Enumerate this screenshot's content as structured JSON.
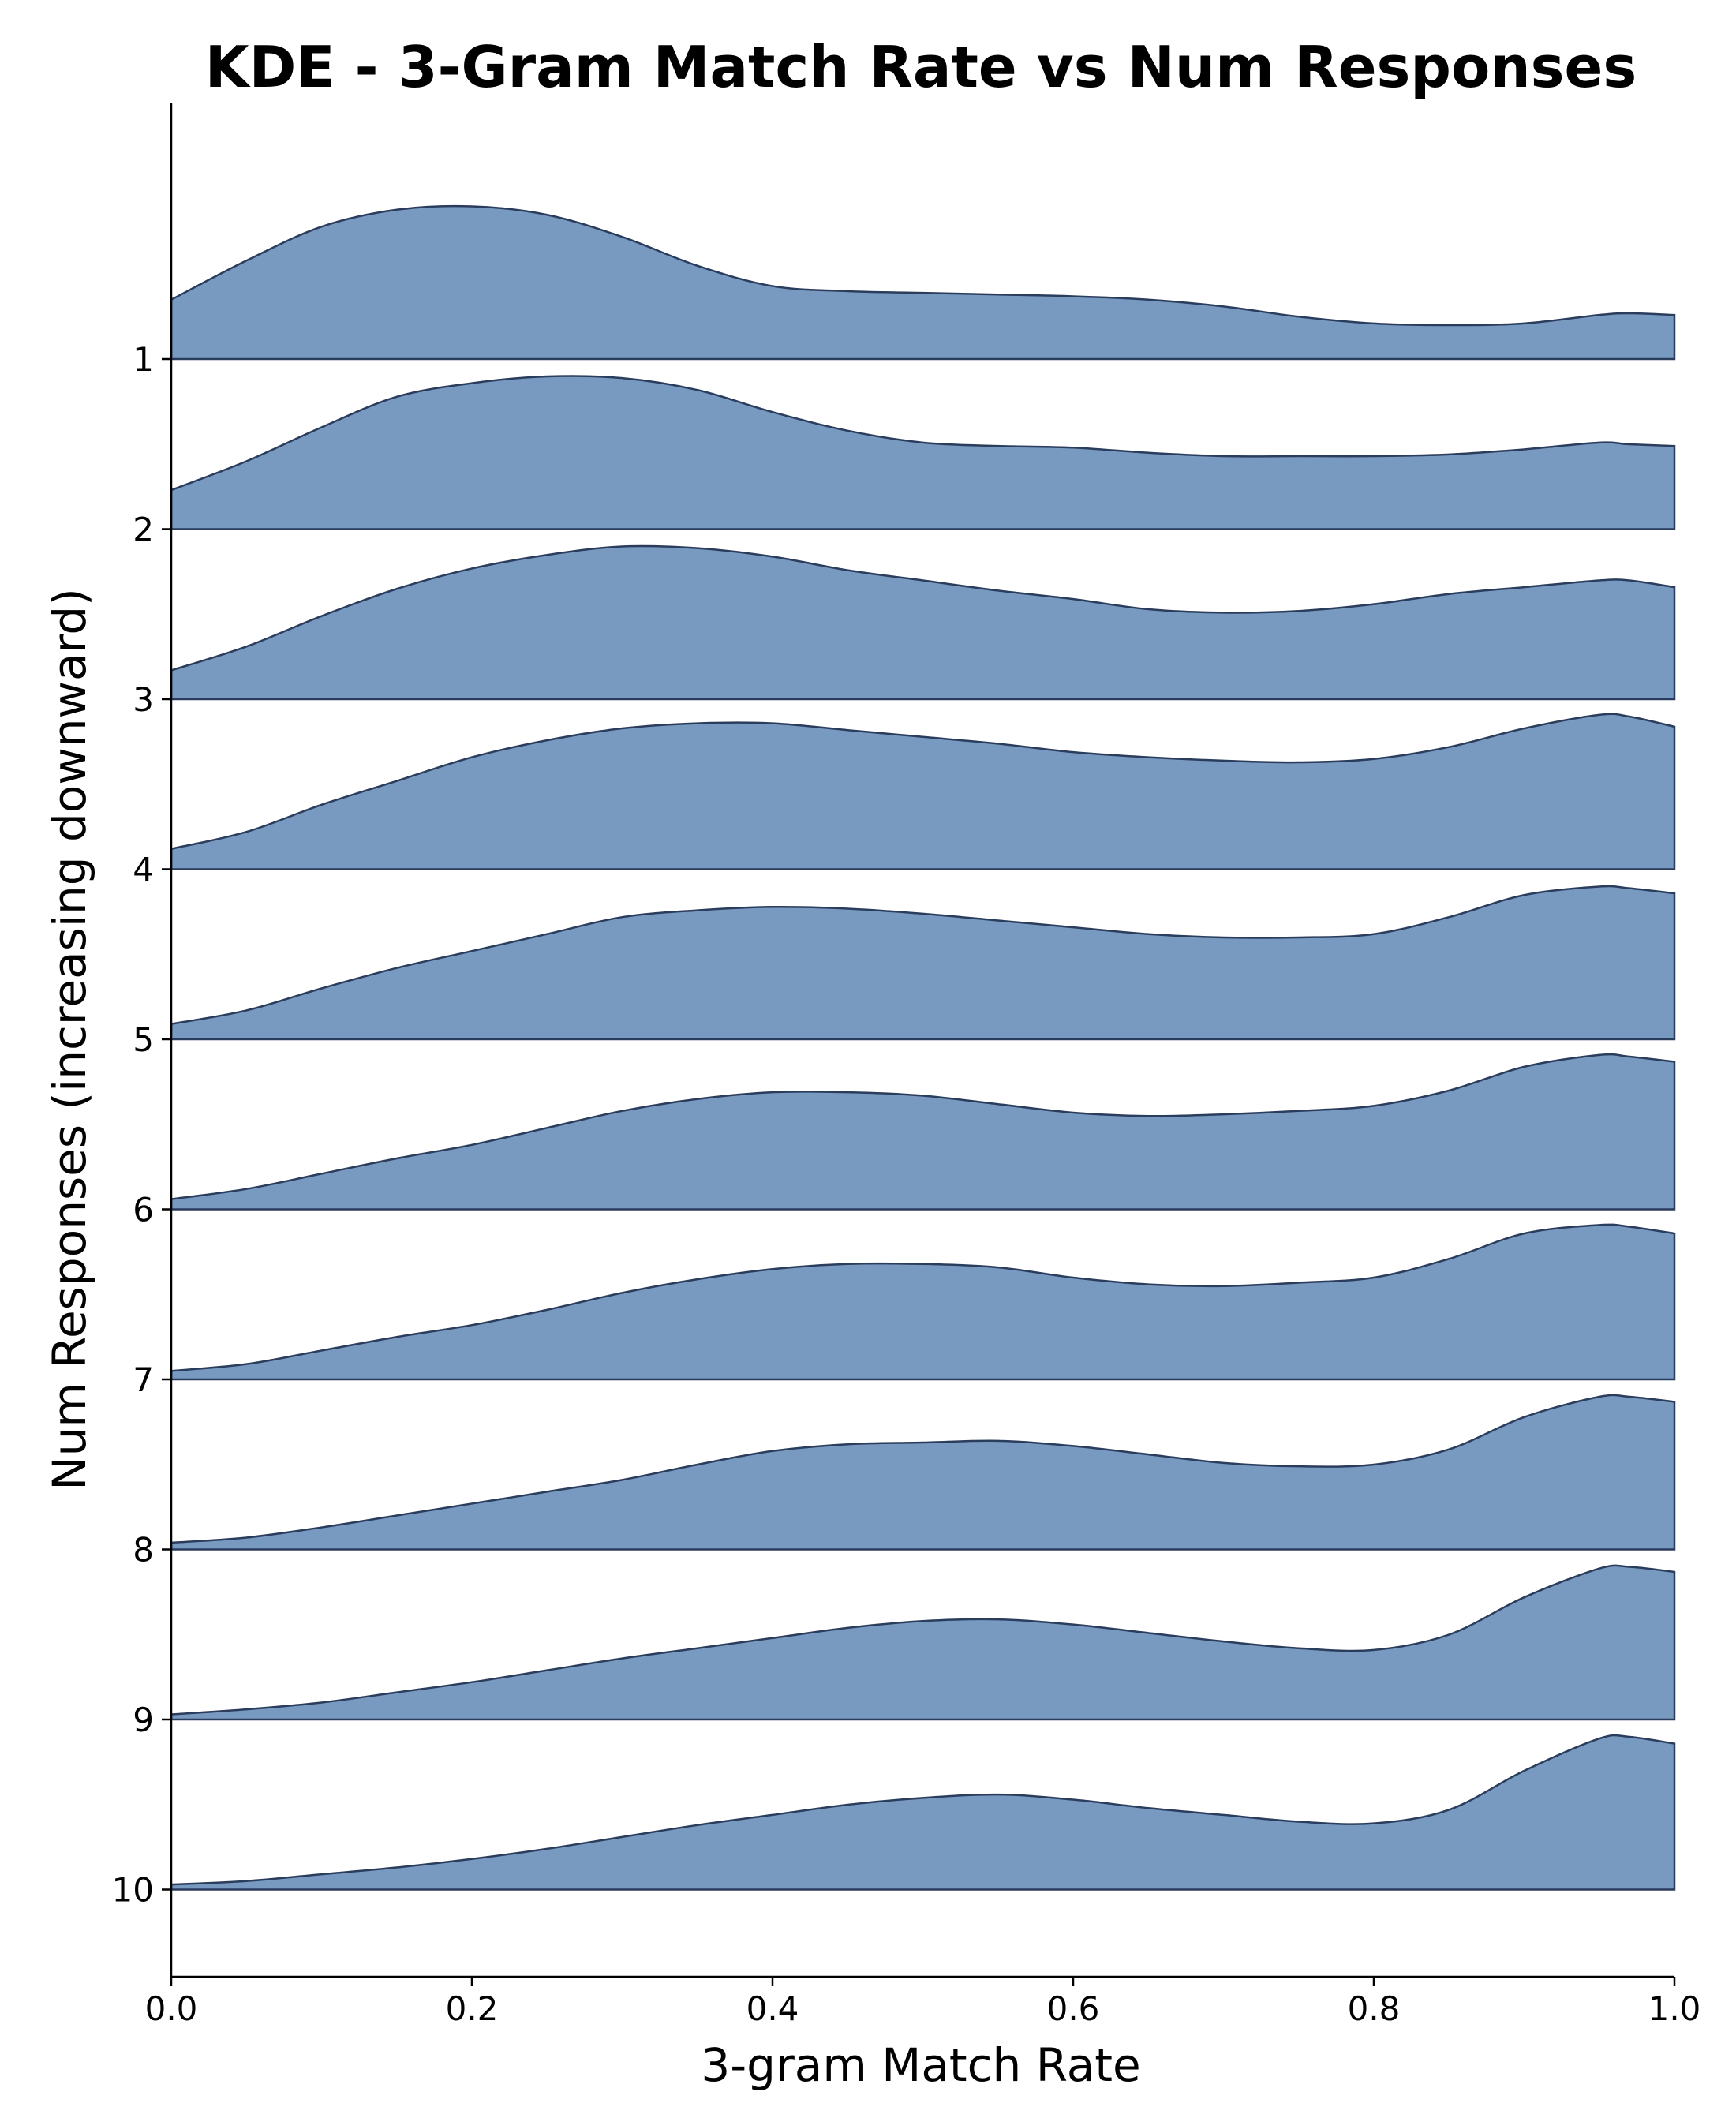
{
  "chart_data": {
    "type": "ridgeline",
    "title": "KDE - 3-Gram Match Rate vs Num Responses",
    "xlabel": "3-gram Match Rate",
    "ylabel": "Num Responses (increasing downward)",
    "xlim": [
      0.0,
      1.0
    ],
    "x_ticks": [
      "0.0",
      "0.2",
      "0.4",
      "0.6",
      "0.8",
      "1.0"
    ],
    "grid": false,
    "fill_color": "#7899c0",
    "line_color": "#2b3d5c",
    "x": [
      0.0,
      0.05,
      0.1,
      0.15,
      0.2,
      0.25,
      0.3,
      0.35,
      0.4,
      0.45,
      0.5,
      0.55,
      0.6,
      0.65,
      0.7,
      0.75,
      0.8,
      0.85,
      0.9,
      0.95,
      0.97,
      1.0
    ],
    "series": [
      {
        "name": "1",
        "values": [
          0.35,
          0.58,
          0.78,
          0.88,
          0.9,
          0.85,
          0.72,
          0.55,
          0.43,
          0.4,
          0.39,
          0.38,
          0.37,
          0.35,
          0.31,
          0.25,
          0.21,
          0.2,
          0.21,
          0.26,
          0.27,
          0.26
        ]
      },
      {
        "name": "2",
        "values": [
          0.23,
          0.4,
          0.6,
          0.78,
          0.86,
          0.9,
          0.89,
          0.82,
          0.69,
          0.58,
          0.51,
          0.49,
          0.48,
          0.45,
          0.43,
          0.43,
          0.43,
          0.44,
          0.47,
          0.51,
          0.5,
          0.49
        ]
      },
      {
        "name": "3",
        "values": [
          0.17,
          0.31,
          0.49,
          0.65,
          0.77,
          0.85,
          0.9,
          0.89,
          0.84,
          0.76,
          0.7,
          0.64,
          0.59,
          0.53,
          0.51,
          0.52,
          0.56,
          0.62,
          0.66,
          0.7,
          0.7,
          0.66
        ]
      },
      {
        "name": "4",
        "values": [
          0.12,
          0.22,
          0.38,
          0.52,
          0.66,
          0.76,
          0.83,
          0.86,
          0.86,
          0.82,
          0.78,
          0.74,
          0.69,
          0.66,
          0.64,
          0.63,
          0.65,
          0.72,
          0.83,
          0.91,
          0.9,
          0.84
        ]
      },
      {
        "name": "5",
        "values": [
          0.09,
          0.17,
          0.3,
          0.42,
          0.52,
          0.62,
          0.72,
          0.76,
          0.78,
          0.77,
          0.74,
          0.7,
          0.66,
          0.62,
          0.6,
          0.6,
          0.62,
          0.72,
          0.85,
          0.9,
          0.89,
          0.86
        ]
      },
      {
        "name": "6",
        "values": [
          0.06,
          0.12,
          0.21,
          0.3,
          0.38,
          0.48,
          0.58,
          0.65,
          0.69,
          0.69,
          0.67,
          0.62,
          0.57,
          0.55,
          0.56,
          0.58,
          0.61,
          0.7,
          0.84,
          0.91,
          0.9,
          0.87
        ]
      },
      {
        "name": "7",
        "values": [
          0.05,
          0.09,
          0.17,
          0.25,
          0.32,
          0.41,
          0.51,
          0.59,
          0.65,
          0.68,
          0.68,
          0.66,
          0.6,
          0.56,
          0.55,
          0.57,
          0.6,
          0.71,
          0.86,
          0.91,
          0.9,
          0.86
        ]
      },
      {
        "name": "8",
        "values": [
          0.04,
          0.07,
          0.13,
          0.2,
          0.27,
          0.34,
          0.41,
          0.5,
          0.58,
          0.62,
          0.63,
          0.64,
          0.61,
          0.56,
          0.51,
          0.49,
          0.5,
          0.59,
          0.78,
          0.9,
          0.9,
          0.87
        ]
      },
      {
        "name": "9",
        "values": [
          0.03,
          0.06,
          0.1,
          0.16,
          0.22,
          0.29,
          0.36,
          0.42,
          0.48,
          0.54,
          0.58,
          0.59,
          0.56,
          0.51,
          0.46,
          0.42,
          0.41,
          0.5,
          0.72,
          0.89,
          0.9,
          0.87
        ]
      },
      {
        "name": "10",
        "values": [
          0.03,
          0.05,
          0.09,
          0.13,
          0.18,
          0.24,
          0.31,
          0.38,
          0.44,
          0.5,
          0.54,
          0.56,
          0.53,
          0.48,
          0.44,
          0.4,
          0.39,
          0.47,
          0.7,
          0.89,
          0.9,
          0.86
        ]
      }
    ]
  }
}
